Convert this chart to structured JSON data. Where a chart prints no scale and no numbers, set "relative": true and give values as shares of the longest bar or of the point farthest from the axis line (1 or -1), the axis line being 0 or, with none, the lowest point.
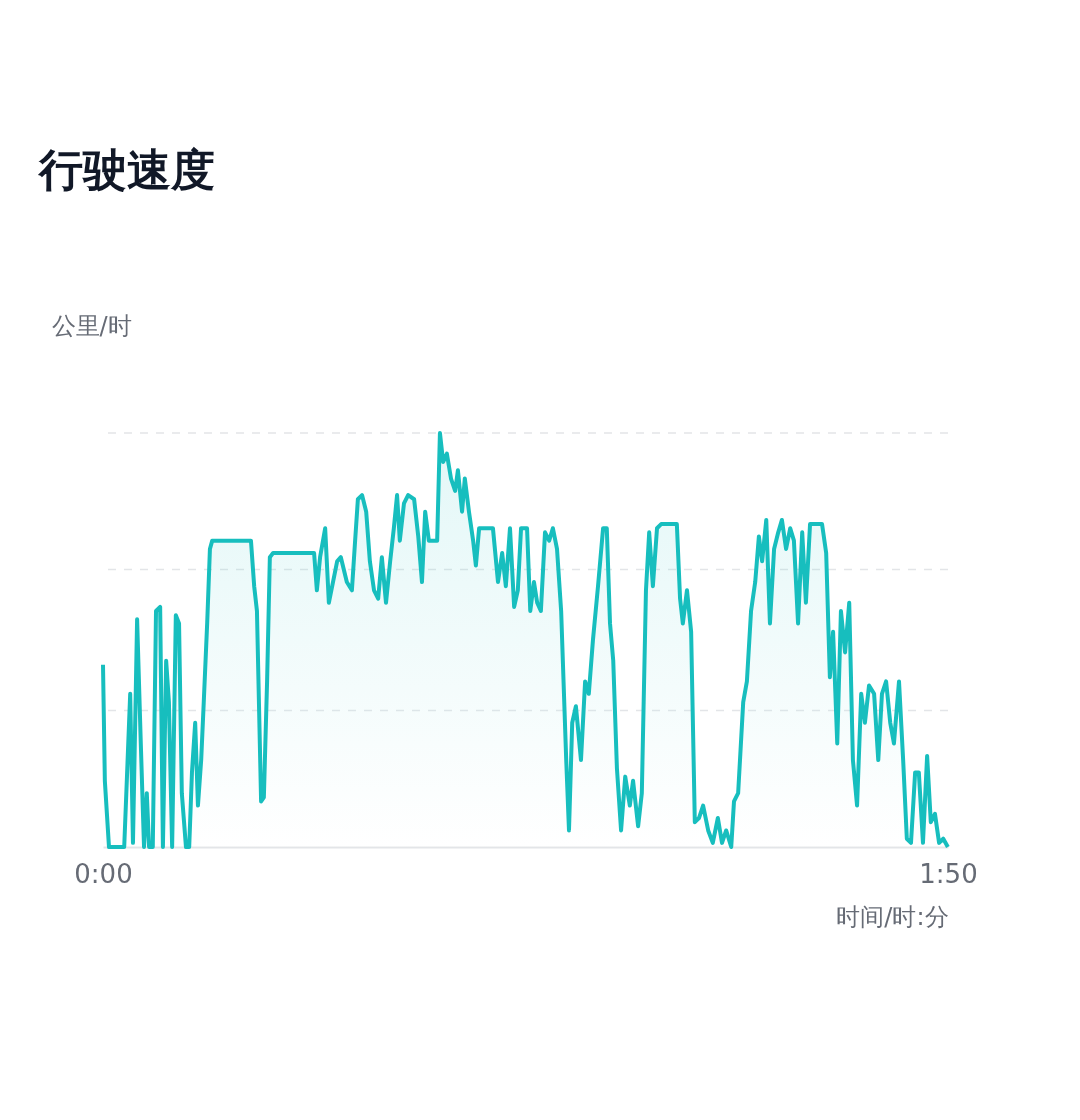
{
  "chart_data": {
    "type": "area",
    "title": "行驶速度",
    "ylabel": "公里/时",
    "xlabel": "时间/时:分",
    "relative": true,
    "color": "#17bebe",
    "ref_lines": [
      {
        "axis": "y",
        "value": 0.33,
        "color": "#e3e5e8",
        "line_style": "dashed"
      },
      {
        "axis": "y",
        "value": 0.67,
        "color": "#e3e5e8",
        "line_style": "dashed"
      },
      {
        "axis": "y",
        "value": 1,
        "color": "#e3e5e8",
        "line_style": "dashed"
      }
    ],
    "xlim": [
      0,
      1.8333
    ],
    "xticks": [
      {
        "value": 0,
        "label": "0:00"
      },
      {
        "value": 1.8333,
        "label": "1:50"
      }
    ],
    "x": [
      0,
      0.004,
      0.013,
      0.046,
      0.052,
      0.059,
      0.065,
      0.074,
      0.082,
      0.089,
      0.095,
      0.1,
      0.108,
      0.115,
      0.124,
      0.13,
      0.137,
      0.143,
      0.15,
      0.158,
      0.165,
      0.171,
      0.18,
      0.187,
      0.193,
      0.2,
      0.206,
      0.213,
      0.219,
      0.226,
      0.232,
      0.237,
      0.321,
      0.328,
      0.334,
      0.343,
      0.349,
      0.356,
      0.362,
      0.369,
      0.458,
      0.464,
      0.471,
      0.482,
      0.49,
      0.499,
      0.508,
      0.516,
      0.529,
      0.54,
      0.547,
      0.553,
      0.562,
      0.571,
      0.579,
      0.588,
      0.597,
      0.605,
      0.614,
      0.623,
      0.631,
      0.638,
      0.644,
      0.653,
      0.662,
      0.675,
      0.684,
      0.692,
      0.699,
      0.707,
      0.725,
      0.731,
      0.738,
      0.746,
      0.755,
      0.764,
      0.77,
      0.779,
      0.785,
      0.794,
      0.803,
      0.809,
      0.816,
      0.833,
      0.846,
      0.857,
      0.866,
      0.874,
      0.883,
      0.892,
      0.9,
      0.907,
      0.92,
      0.927,
      0.935,
      0.942,
      0.95,
      0.959,
      0.968,
      0.976,
      0.985,
      0.994,
      1.005,
      1.011,
      1.018,
      1.026,
      1.037,
      1.046,
      1.054,
      1.063,
      1.074,
      1.085,
      1.093,
      1.1,
      1.107,
      1.115,
      1.124,
      1.133,
      1.143,
      1.15,
      1.161,
      1.169,
      1.178,
      1.185,
      1.193,
      1.202,
      1.211,
      1.245,
      1.252,
      1.258,
      1.267,
      1.276,
      1.284,
      1.293,
      1.302,
      1.313,
      1.323,
      1.334,
      1.343,
      1.352,
      1.363,
      1.369,
      1.378,
      1.389,
      1.397,
      1.406,
      1.415,
      1.423,
      1.43,
      1.439,
      1.447,
      1.456,
      1.465,
      1.473,
      1.482,
      1.491,
      1.499,
      1.508,
      1.517,
      1.525,
      1.534,
      1.56,
      1.569,
      1.577,
      1.584,
      1.593,
      1.601,
      1.61,
      1.619,
      1.627,
      1.636,
      1.645,
      1.653,
      1.662,
      1.673,
      1.682,
      1.69,
      1.699,
      1.708,
      1.716,
      1.727,
      1.736,
      1.744,
      1.753,
      1.762,
      1.77,
      1.779,
      1.788,
      1.796,
      1.805,
      1.814,
      1.823,
      1.833
    ],
    "values": [
      0.44,
      0.16,
      0,
      0,
      0.17,
      0.37,
      0.01,
      0.55,
      0.25,
      0,
      0.13,
      0,
      0,
      0.57,
      0.58,
      0,
      0.45,
      0.35,
      0,
      0.56,
      0.54,
      0.13,
      0,
      0,
      0.18,
      0.3,
      0.1,
      0.21,
      0.36,
      0.54,
      0.72,
      0.74,
      0.74,
      0.63,
      0.57,
      0.11,
      0.12,
      0.4,
      0.7,
      0.71,
      0.71,
      0.62,
      0.7,
      0.77,
      0.59,
      0.64,
      0.69,
      0.7,
      0.64,
      0.62,
      0.74,
      0.84,
      0.85,
      0.81,
      0.69,
      0.62,
      0.6,
      0.7,
      0.59,
      0.69,
      0.77,
      0.85,
      0.74,
      0.83,
      0.85,
      0.84,
      0.75,
      0.64,
      0.81,
      0.74,
      0.74,
      1.0,
      0.93,
      0.95,
      0.89,
      0.86,
      0.91,
      0.81,
      0.89,
      0.81,
      0.74,
      0.68,
      0.77,
      0.77,
      0.77,
      0.64,
      0.71,
      0.63,
      0.77,
      0.58,
      0.62,
      0.77,
      0.77,
      0.57,
      0.64,
      0.59,
      0.57,
      0.76,
      0.74,
      0.77,
      0.72,
      0.57,
      0.21,
      0.04,
      0.3,
      0.34,
      0.21,
      0.4,
      0.37,
      0.5,
      0.63,
      0.77,
      0.77,
      0.54,
      0.45,
      0.19,
      0.04,
      0.17,
      0.1,
      0.16,
      0.05,
      0.13,
      0.62,
      0.76,
      0.63,
      0.77,
      0.78,
      0.78,
      0.6,
      0.54,
      0.62,
      0.52,
      0.06,
      0.07,
      0.1,
      0.04,
      0.01,
      0.07,
      0.01,
      0.04,
      0,
      0.11,
      0.13,
      0.35,
      0.4,
      0.57,
      0.64,
      0.75,
      0.69,
      0.79,
      0.54,
      0.72,
      0.76,
      0.79,
      0.72,
      0.77,
      0.74,
      0.54,
      0.76,
      0.59,
      0.78,
      0.78,
      0.71,
      0.41,
      0.52,
      0.25,
      0.57,
      0.47,
      0.59,
      0.21,
      0.1,
      0.37,
      0.3,
      0.39,
      0.37,
      0.21,
      0.37,
      0.4,
      0.3,
      0.25,
      0.4,
      0.21,
      0.02,
      0.01,
      0.18,
      0.18,
      0.01,
      0.22,
      0.06,
      0.08,
      0.01,
      0.02,
      0
    ]
  }
}
